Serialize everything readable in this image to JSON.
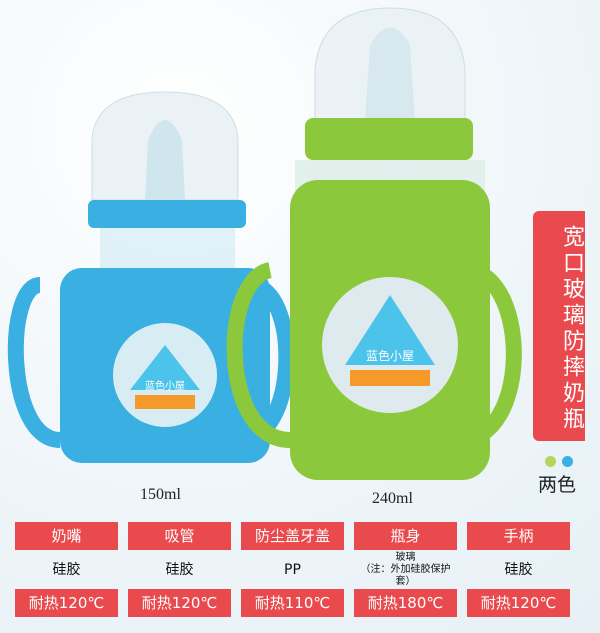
{
  "product_title": "宽口玻璃防摔奶瓶",
  "color_count_label": "两色",
  "colors": {
    "accent": "#e94a4d",
    "green": "#8cc83c",
    "blue": "#3ab0e2",
    "dot_green": "#b5d65a",
    "dot_blue": "#3ab0e2"
  },
  "bottles": [
    {
      "size": "150ml",
      "color": "blue",
      "logo_text": "蓝色小屋"
    },
    {
      "size": "240ml",
      "color": "green",
      "logo_text": "蓝色小屋"
    }
  ],
  "specs": [
    {
      "part": "奶嘴",
      "material": "硅胶",
      "note": "",
      "heat": "耐热120℃"
    },
    {
      "part": "吸管",
      "material": "硅胶",
      "note": "",
      "heat": "耐热120℃"
    },
    {
      "part": "防尘盖牙盖",
      "material": "PP",
      "note": "",
      "heat": "耐热110℃"
    },
    {
      "part": "瓶身",
      "material": "玻璃",
      "note": "（注：外加硅胶保护套）",
      "heat": "耐热180℃"
    },
    {
      "part": "手柄",
      "material": "硅胶",
      "note": "",
      "heat": "耐热120℃"
    }
  ]
}
